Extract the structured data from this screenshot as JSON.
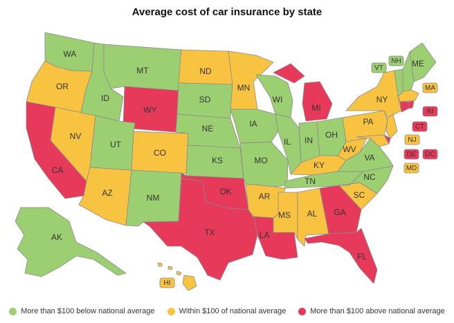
{
  "title": "Average cost of car insurance by state",
  "colors": {
    "below": "#9ccf72",
    "within": "#f8c341",
    "above": "#e7395a"
  },
  "legend": [
    {
      "key": "below",
      "label": "More than $100 below national average"
    },
    {
      "key": "within",
      "label": "Within $100 of national average"
    },
    {
      "key": "above",
      "label": "More than $100 above national average"
    }
  ],
  "states": {
    "WA": "below",
    "OR": "within",
    "CA": "above",
    "NV": "within",
    "ID": "below",
    "MT": "below",
    "WY": "above",
    "UT": "below",
    "AZ": "within",
    "CO": "within",
    "NM": "below",
    "ND": "within",
    "SD": "below",
    "NE": "below",
    "KS": "below",
    "OK": "above",
    "TX": "above",
    "MN": "within",
    "IA": "below",
    "MO": "below",
    "AR": "within",
    "LA": "above",
    "WI": "below",
    "IL": "below",
    "MI": "above",
    "IN": "below",
    "OH": "below",
    "KY": "within",
    "TN": "below",
    "MS": "within",
    "AL": "within",
    "GA": "above",
    "FL": "above",
    "SC": "within",
    "NC": "below",
    "VA": "below",
    "WV": "within",
    "PA": "within",
    "NY": "within",
    "ME": "below",
    "AK": "below",
    "HI": "within",
    "VT": "below",
    "NH": "below",
    "MA": "within",
    "RI": "above",
    "CT": "above",
    "NJ": "within",
    "DE": "above",
    "MD": "within",
    "DC": "above"
  }
}
